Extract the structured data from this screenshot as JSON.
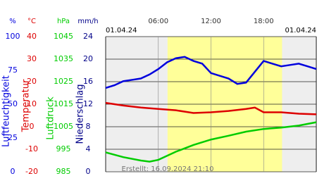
{
  "chart_data": {
    "type": "line",
    "date_left": "01.04.24",
    "date_right": "01.04.24",
    "created": "Erstellt: 16.09.2024 21:10",
    "xlim": [
      0,
      24
    ],
    "xticks": [
      {
        "value": 6,
        "label": "06:00"
      },
      {
        "value": 12,
        "label": "12:00"
      },
      {
        "value": 18,
        "label": "18:00"
      }
    ],
    "daylight": [
      7.05,
      20.1
    ],
    "axes": [
      {
        "unit": "%",
        "label": "Luftfeuchtigkeit",
        "color": "#0000dd",
        "ylim": [
          0,
          100
        ],
        "yticks": [
          100,
          75,
          50,
          25,
          0
        ]
      },
      {
        "unit": "°C",
        "label": "Temperatur",
        "color": "#dd0000",
        "ylim": [
          -20,
          40
        ],
        "yticks": [
          40,
          30,
          20,
          10,
          0,
          -10,
          -20
        ]
      },
      {
        "unit": "hPa",
        "label": "Luftdruck",
        "color": "#00cc00",
        "ylim": [
          985,
          1045
        ],
        "yticks": [
          1045,
          1035,
          1025,
          1015,
          1005,
          995,
          985
        ]
      },
      {
        "unit": "mm/h",
        "label": "Niederschlag",
        "color": "#000088",
        "ylim": [
          0,
          24
        ],
        "yticks": [
          24,
          20,
          16,
          12,
          8,
          4,
          0
        ]
      }
    ],
    "series": [
      {
        "axis": 0,
        "color": "#0000dd",
        "x": [
          0,
          1,
          2,
          3,
          4,
          5,
          6,
          7,
          8,
          9,
          10,
          11,
          12,
          13,
          14,
          15,
          16,
          17,
          18,
          19,
          20,
          21,
          22,
          23,
          24
        ],
        "values": [
          62,
          64,
          67,
          68,
          69,
          72,
          76,
          81,
          84,
          85,
          82,
          80,
          73,
          71,
          69,
          65,
          66,
          74,
          82,
          80,
          78,
          79,
          80,
          78,
          76
        ]
      },
      {
        "axis": 1,
        "color": "#dd0000",
        "x": [
          0,
          2,
          4,
          6,
          8,
          10,
          12,
          14,
          16,
          17,
          18,
          20,
          22,
          24
        ],
        "values": [
          10.6,
          9.4,
          8.5,
          7.9,
          7.3,
          6.1,
          6.4,
          7.0,
          7.9,
          8.5,
          6.4,
          6.4,
          5.8,
          5.5
        ]
      },
      {
        "axis": 2,
        "color": "#00cc00",
        "x": [
          0,
          2,
          4,
          5,
          6,
          8,
          10,
          12,
          14,
          16,
          18,
          20,
          22,
          24
        ],
        "values": [
          993.6,
          991.5,
          990.0,
          989.5,
          990.3,
          993.9,
          996.9,
          999.3,
          1001.0,
          1002.8,
          1004.0,
          1004.6,
          1005.5,
          1007.0
        ]
      }
    ]
  }
}
